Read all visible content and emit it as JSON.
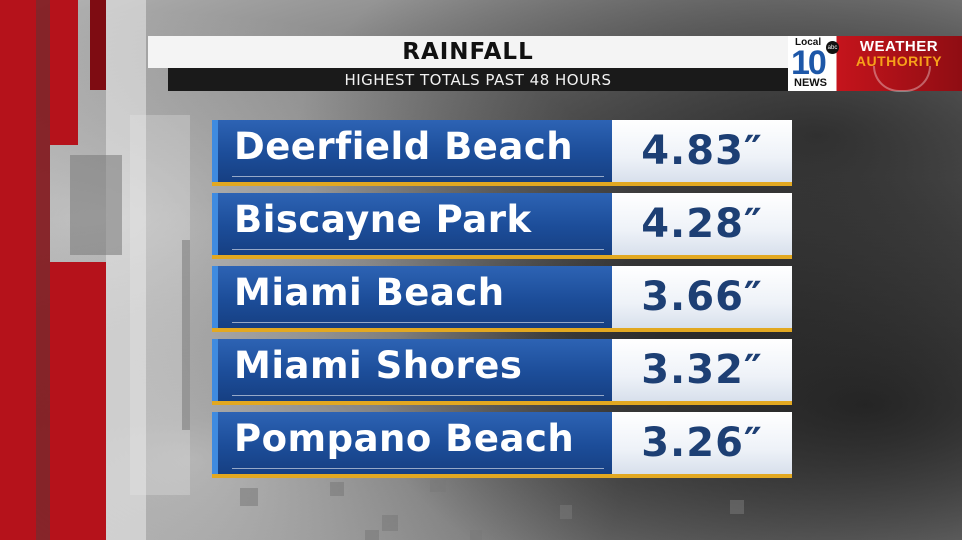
{
  "header": {
    "title": "RAINFALL",
    "subtitle": "HIGHEST TOTALS PAST 48 HOURS"
  },
  "logo": {
    "station_top": "Local",
    "station_number": "10",
    "station_bottom": "NEWS",
    "network": "abc",
    "brand_line1": "WEATHER",
    "brand_line2": "AUTHORITY"
  },
  "rainfall": [
    {
      "location": "Deerfield Beach",
      "total": "4.83″"
    },
    {
      "location": "Biscayne Park",
      "total": "4.28″"
    },
    {
      "location": "Miami Beach",
      "total": "3.66″"
    },
    {
      "location": "Miami Shores",
      "total": "3.32″"
    },
    {
      "location": "Pompano Beach",
      "total": "3.26″"
    }
  ],
  "colors": {
    "name_blue": "#1c4d99",
    "value_text": "#1d3f74",
    "gold_rule": "#e2a821",
    "brand_red": "#b5121b"
  }
}
